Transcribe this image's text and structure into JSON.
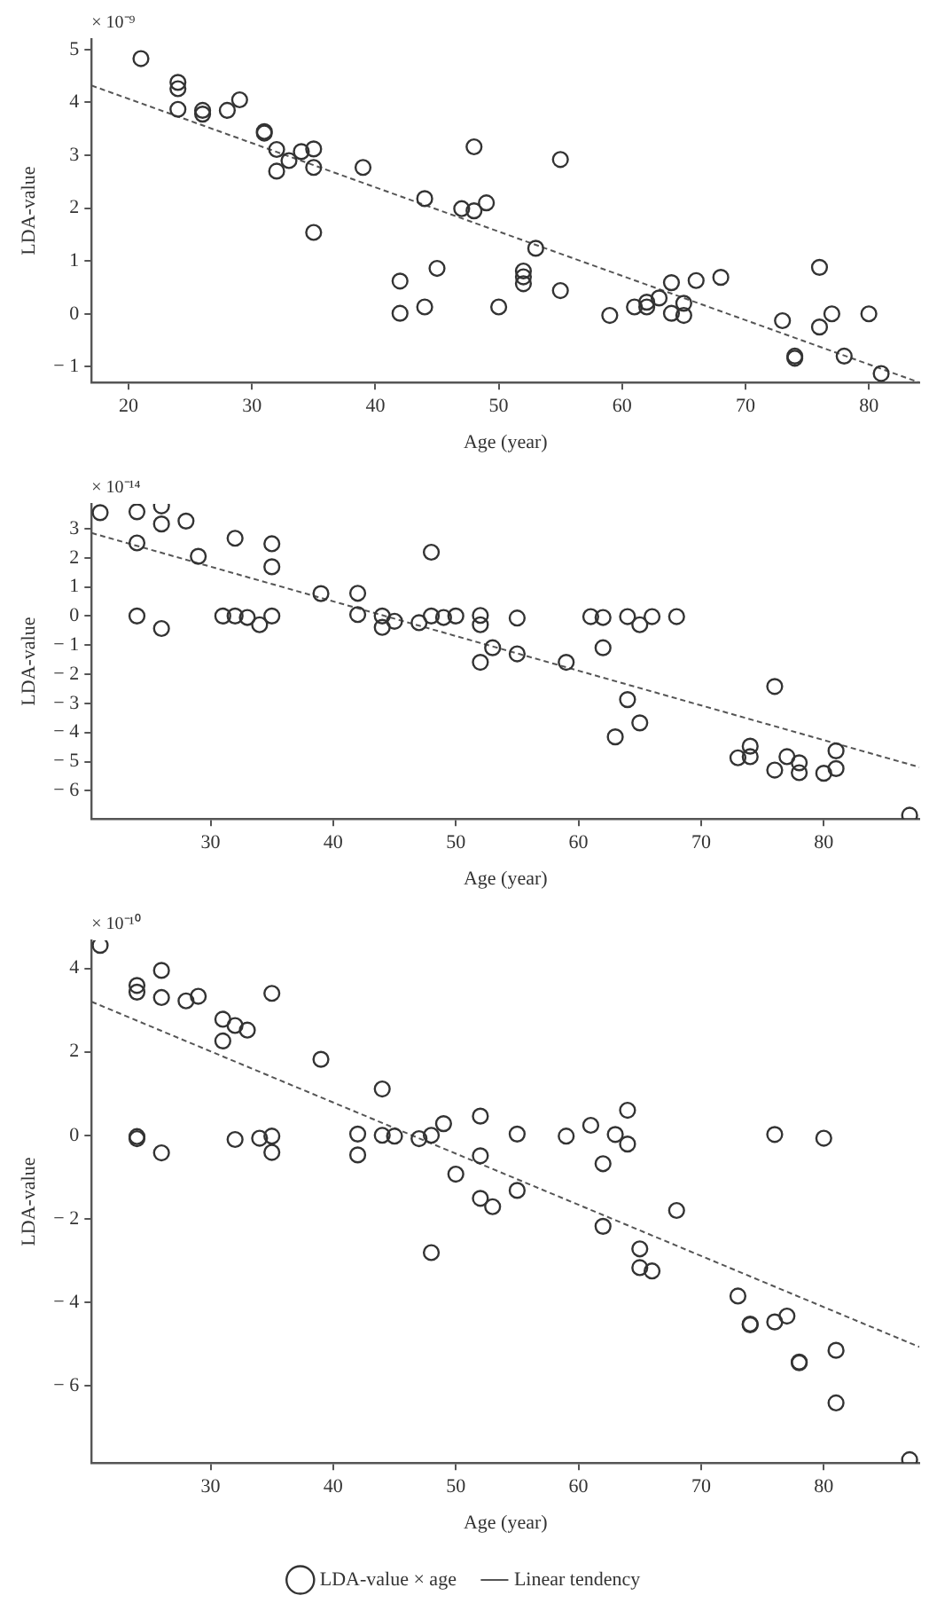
{
  "chart_data": [
    {
      "type": "scatter",
      "xlabel": "Age (year)",
      "ylabel": "LDA-value",
      "annotations": [
        "× 10⁻⁹"
      ],
      "xlim": [
        17,
        84.1
      ],
      "ylim": [
        -1.3,
        5.2
      ],
      "xticks": [
        20,
        30,
        40,
        50,
        60,
        70,
        80
      ],
      "yticks": [
        {
          "value": -1,
          "label": "− 1"
        },
        0,
        1,
        2,
        3,
        4,
        5
      ],
      "grid": false,
      "legend": false,
      "series": [
        {
          "type": "scatter",
          "marker": "circle",
          "color": "#333333",
          "x": [
            21,
            24,
            24,
            24,
            26,
            26,
            28,
            29,
            31,
            31,
            32,
            32,
            33,
            34,
            35,
            35,
            35,
            39,
            42,
            42,
            44,
            44,
            45,
            47,
            48,
            48,
            49,
            50,
            53,
            52,
            52,
            52,
            55,
            55,
            59,
            61,
            62,
            62,
            63,
            64,
            64,
            65,
            65,
            66,
            68,
            73,
            74,
            74,
            76,
            76,
            77,
            78,
            80,
            81
          ],
          "values": [
            4.83,
            4.38,
            4.26,
            3.87,
            3.85,
            3.78,
            3.85,
            4.05,
            3.45,
            3.42,
            3.11,
            2.7,
            2.9,
            3.07,
            3.12,
            2.77,
            1.54,
            2.77,
            0.62,
            0.01,
            2.18,
            0.13,
            0.86,
            1.99,
            1.95,
            3.16,
            2.1,
            0.13,
            1.24,
            0.81,
            0.7,
            0.57,
            2.92,
            0.44,
            -0.03,
            0.13,
            0.13,
            0.22,
            0.3,
            0.59,
            0.01,
            0.2,
            -0.03,
            0.63,
            0.69,
            -0.13,
            -0.8,
            -0.84,
            0.88,
            -0.25,
            0,
            -0.8,
            0,
            -1.13
          ]
        },
        {
          "type": "line",
          "marker": "none",
          "line_style": "dashed",
          "color": "#555555",
          "x": [
            17,
            84.1
          ],
          "values": [
            4.32,
            -1.3
          ]
        }
      ]
    },
    {
      "type": "scatter",
      "xlabel": "Age (year)",
      "ylabel": "LDA-value",
      "annotations": [
        "× 10⁻¹⁴"
      ],
      "xlim": [
        20.3,
        87.8
      ],
      "ylim": [
        -6.97,
        3.85
      ],
      "xticks": [
        30,
        40,
        50,
        60,
        70,
        80
      ],
      "yticks": [
        {
          "value": -6,
          "label": "− 6"
        },
        {
          "value": -5,
          "label": "− 5"
        },
        {
          "value": -4,
          "label": "− 4"
        },
        {
          "value": -3,
          "label": "− 3"
        },
        {
          "value": -2,
          "label": "− 2"
        },
        {
          "value": -1,
          "label": "− 1"
        },
        0,
        1,
        2,
        3
      ],
      "grid": false,
      "legend": false,
      "series": [
        {
          "type": "scatter",
          "marker": "circle",
          "color": "#333333",
          "x": [
            21,
            24,
            24,
            24,
            26,
            26,
            26,
            28,
            29,
            31,
            32,
            32,
            33,
            34,
            35,
            35,
            35,
            39,
            42,
            42,
            44,
            44,
            45,
            47,
            48,
            48,
            49,
            50,
            52,
            52,
            52,
            53,
            55,
            55,
            59,
            61,
            62,
            62,
            63,
            64,
            64,
            65,
            65,
            66,
            68,
            76,
            73,
            74,
            74,
            76,
            77,
            78,
            78,
            80,
            81,
            81,
            87
          ],
          "values": [
            3.55,
            3.58,
            2.51,
            0,
            3.78,
            3.16,
            -0.43,
            3.26,
            2.05,
            0,
            2.67,
            0,
            -0.05,
            -0.3,
            2.48,
            1.69,
            0,
            0.77,
            0.78,
            0.05,
            0,
            -0.39,
            -0.18,
            -0.23,
            2.19,
            0,
            -0.05,
            0,
            0.02,
            -0.3,
            -1.59,
            -1.09,
            -0.07,
            -1.3,
            -1.59,
            -0.02,
            -0.05,
            -1.09,
            -4.15,
            -0.02,
            -2.87,
            -0.3,
            -3.67,
            -0.02,
            -0.02,
            -2.42,
            -4.87,
            -4.47,
            -4.83,
            -5.29,
            -4.83,
            -5.04,
            -5.38,
            -5.4,
            -4.63,
            -5.24,
            -6.84
          ]
        },
        {
          "type": "line",
          "marker": "none",
          "line_style": "dashed",
          "color": "#555555",
          "x": [
            20.3,
            87.8
          ],
          "values": [
            2.85,
            -5.19
          ]
        }
      ]
    },
    {
      "type": "scatter",
      "xlabel": "Age (year)",
      "ylabel": "LDA-value",
      "annotations": [
        "× 10⁻¹⁰"
      ],
      "xlim": [
        20.3,
        87.8
      ],
      "ylim": [
        -7.85,
        4.67
      ],
      "xticks": [
        30,
        40,
        50,
        60,
        70,
        80
      ],
      "yticks": [
        {
          "value": -6,
          "label": "− 6"
        },
        {
          "value": -4,
          "label": "− 4"
        },
        {
          "value": -2,
          "label": "− 2"
        },
        0,
        2,
        4
      ],
      "grid": false,
      "legend": "bottom",
      "series": [
        {
          "type": "scatter",
          "name": "LDA-value × age",
          "marker": "circle",
          "color": "#333333",
          "x": [
            21,
            24,
            24,
            24,
            24,
            26,
            26,
            26,
            28,
            29,
            31,
            31,
            32,
            32,
            33,
            34,
            35,
            35,
            35,
            39,
            42,
            42,
            44,
            44,
            45,
            47,
            48,
            48,
            49,
            50,
            52,
            52,
            52,
            53,
            55,
            55,
            59,
            61,
            62,
            62,
            63,
            64,
            64,
            65,
            65,
            66,
            68,
            73,
            74,
            74,
            76,
            76,
            77,
            78,
            78,
            80,
            81,
            81,
            87
          ],
          "values": [
            4.55,
            3.59,
            3.43,
            -0.03,
            -0.08,
            3.95,
            3.3,
            -0.42,
            3.22,
            3.33,
            2.78,
            2.26,
            2.63,
            -0.1,
            2.52,
            -0.07,
            3.4,
            -0.02,
            -0.41,
            1.82,
            0.03,
            -0.47,
            1.11,
            0,
            -0.02,
            -0.08,
            0,
            -2.81,
            0.28,
            -0.93,
            0.46,
            -0.49,
            -1.51,
            -1.71,
            0.03,
            -1.32,
            -0.02,
            0.24,
            -0.68,
            -2.18,
            0.02,
            0.6,
            -0.21,
            -2.72,
            -3.17,
            -3.25,
            -1.8,
            -3.85,
            -4.52,
            -4.54,
            0.02,
            -4.47,
            -4.33,
            -5.43,
            -5.45,
            -0.07,
            -5.15,
            -6.41,
            -7.77
          ]
        },
        {
          "type": "line",
          "name": "Linear tendency",
          "marker": "none",
          "line_style": "dashed",
          "color": "#555555",
          "x": [
            20.3,
            87.8
          ],
          "values": [
            3.2,
            -5.07
          ]
        }
      ]
    }
  ]
}
